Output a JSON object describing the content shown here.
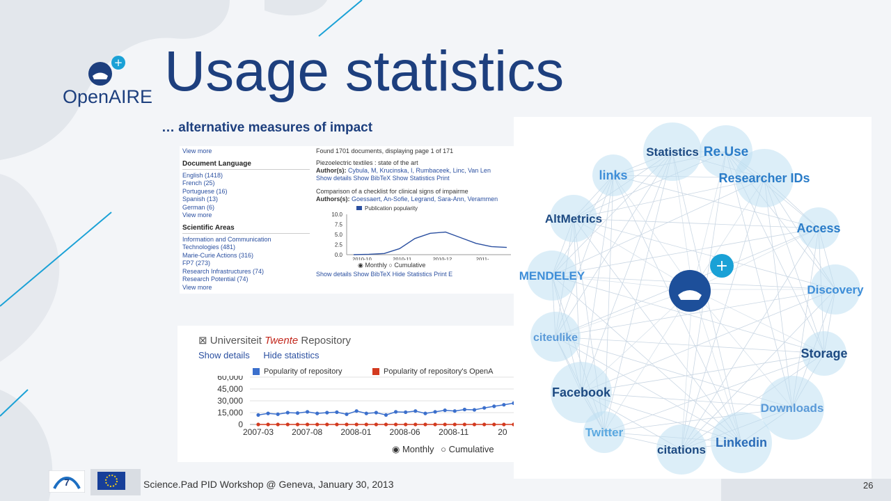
{
  "slide": {
    "title": "Usage statistics",
    "subtitle": "… alternative measures of impact",
    "logo_name": "OpenAIRE",
    "logo_plus": "+",
    "footer_text": "Science.Pad PID Workshop @ Geneva, January 30, 2013",
    "page_number": "26"
  },
  "screenshot1": {
    "sidebar": {
      "view_more": "View more",
      "doc_lang_heading": "Document Language",
      "languages": [
        "English (1418)",
        "French (25)",
        "Portuguese (16)",
        "Spanish (13)",
        "German (6)"
      ],
      "sci_areas_heading": "Scientific Areas",
      "areas": [
        "Information and Communication",
        "Technologies (481)",
        "Marie-Curie Actions (316)",
        "FP7 (273)",
        "Research Infrastructures (74)",
        "Research Potential (74)"
      ]
    },
    "main": {
      "results_info": "Found 1701 documents, displaying page 1 of 171",
      "result1_title": "Piezoelectric textiles : state of the art",
      "result1_authors_label": "Author(s):",
      "result1_authors": "Cybula, M, Krucinska, I, Rumbaceek, Linc, Van Len",
      "result1_links": [
        "Show details",
        "Show BibTeX",
        "Show Statistics",
        "Print"
      ],
      "result2_title": "Comparison of a checklist for clinical signs of impairme",
      "result2_authors_label": "Authors(s):",
      "result2_authors": "Goessaert, An-Sofie, Legrand, Sara-Ann, Verammen",
      "result2_links": [
        "Show details",
        "Show BibTeX",
        "Hide Statistics",
        "Print",
        "E"
      ],
      "toggle_options": [
        "Monthly",
        "Cumulative"
      ]
    }
  },
  "screenshot2": {
    "title_prefix": "Universiteit",
    "title_name": "Twente",
    "title_suffix": "Repository",
    "links": [
      "Show details",
      "Hide statistics"
    ],
    "toggle_options": [
      "Monthly",
      "Cumulative"
    ]
  },
  "network": {
    "nodes": [
      "Statistics",
      "Re.Use",
      "links",
      "Researcher IDs",
      "AltMetrics",
      "Access",
      "MENDELEY",
      "Discovery",
      "citeulike",
      "Storage",
      "Facebook",
      "Downloads",
      "Twitter",
      "citations",
      "Linkedin"
    ],
    "center_plus": "+"
  },
  "colors": {
    "brand_blue": "#1d3f7e",
    "series_blue": "#3b6fcc",
    "series_red": "#d33a1f",
    "accent_cyan": "#1aa1d6"
  },
  "chart_data": [
    {
      "type": "line",
      "title": "",
      "series": [
        {
          "name": "Publication popularity",
          "values": [
            0.0,
            0.1,
            0.3,
            1.5,
            4.0,
            5.3,
            5.6,
            4.2,
            2.8,
            2.0,
            1.8
          ]
        }
      ],
      "x": [
        "2010-10",
        "",
        "2010-11",
        "",
        "2010-12",
        "",
        "2011-",
        "",
        "",
        "",
        ""
      ],
      "xticks": [
        "2010-10",
        "2010-11",
        "2010-12",
        "2011-"
      ],
      "yticks": [
        "10.0",
        "7.5",
        "5.0",
        "2.5",
        "0.0"
      ],
      "ylim": [
        0,
        10
      ]
    },
    {
      "type": "line",
      "title": "",
      "series": [
        {
          "name": "Popularity of repository",
          "values": [
            12000,
            14000,
            13000,
            15000,
            14500,
            16000,
            14000,
            15000,
            15500,
            13000,
            17000,
            14000,
            15000,
            12000,
            16000,
            15500,
            17000,
            14000,
            16000,
            18000,
            17000,
            19000,
            18500,
            21000,
            23000,
            25000,
            27000
          ]
        },
        {
          "name": "Popularity of repository's OpenA",
          "values": [
            0,
            0,
            0,
            0,
            0,
            0,
            0,
            0,
            0,
            0,
            0,
            0,
            0,
            0,
            0,
            0,
            0,
            0,
            0,
            0,
            0,
            0,
            0,
            0,
            0,
            0,
            0
          ]
        }
      ],
      "xticks": [
        "2007-03",
        "2007-08",
        "2008-01",
        "2008-06",
        "2008-11",
        "20"
      ],
      "yticks": [
        "60,000",
        "45,000",
        "30,000",
        "15,000",
        "0"
      ],
      "ylim": [
        0,
        60000
      ]
    }
  ]
}
